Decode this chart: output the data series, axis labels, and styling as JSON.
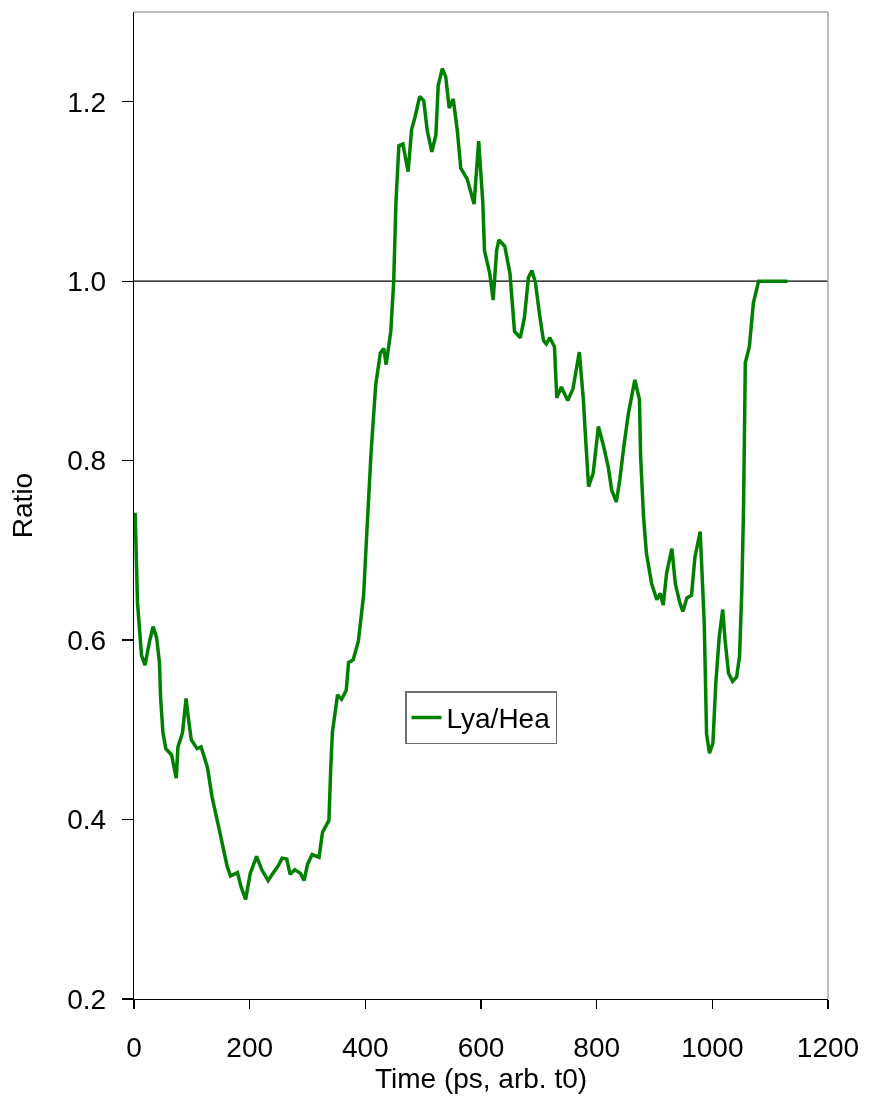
{
  "chart_data": {
    "type": "line",
    "xlabel": "Time (ps, arb. t0)",
    "ylabel": "Ratio",
    "x": [
      2,
      6,
      13,
      19,
      27,
      33,
      39,
      44,
      46,
      50,
      55,
      65,
      73,
      76,
      84,
      90,
      94,
      99,
      109,
      116,
      127,
      135,
      149,
      161,
      167,
      179,
      185,
      193,
      201,
      212,
      221,
      232,
      240,
      249,
      256,
      264,
      270,
      278,
      288,
      294,
      300,
      308,
      320,
      326,
      337,
      340,
      343,
      352,
      359,
      367,
      371,
      379,
      388,
      397,
      403,
      410,
      418,
      426,
      432,
      436,
      444,
      449,
      453,
      458,
      465,
      474,
      480,
      486,
      494,
      501,
      507,
      515,
      522,
      526,
      533,
      539,
      545,
      552,
      559,
      565,
      576,
      588,
      596,
      603,
      606,
      615,
      621,
      627,
      631,
      641,
      650,
      658,
      668,
      675,
      682,
      688,
      694,
      701,
      708,
      713,
      719,
      727,
      731,
      739,
      750,
      759,
      770,
      777,
      780,
      786,
      794,
      803,
      812,
      820,
      826,
      834,
      840,
      847,
      855,
      866,
      874,
      876,
      881,
      886,
      895,
      904,
      910,
      915,
      921,
      930,
      936,
      944,
      949,
      956,
      964,
      970,
      979,
      983,
      986,
      990,
      995,
      1001,
      1006,
      1012,
      1018,
      1022,
      1028,
      1035,
      1042,
      1047,
      1051,
      1054,
      1057,
      1064,
      1071,
      1080,
      1130
    ],
    "series": [
      {
        "name": "Lya/Hea",
        "color": "#008000",
        "values": [
          0.742,
          0.642,
          0.583,
          0.572,
          0.599,
          0.615,
          0.603,
          0.575,
          0.536,
          0.497,
          0.479,
          0.472,
          0.446,
          0.481,
          0.497,
          0.535,
          0.513,
          0.489,
          0.479,
          0.481,
          0.458,
          0.425,
          0.384,
          0.348,
          0.337,
          0.341,
          0.325,
          0.311,
          0.34,
          0.359,
          0.344,
          0.332,
          0.34,
          0.348,
          0.357,
          0.356,
          0.339,
          0.344,
          0.34,
          0.332,
          0.35,
          0.361,
          0.358,
          0.386,
          0.399,
          0.454,
          0.497,
          0.539,
          0.534,
          0.544,
          0.575,
          0.578,
          0.599,
          0.65,
          0.725,
          0.81,
          0.885,
          0.92,
          0.925,
          0.907,
          0.944,
          0.999,
          1.089,
          1.151,
          1.153,
          1.122,
          1.169,
          1.183,
          1.206,
          1.201,
          1.168,
          1.144,
          1.163,
          1.218,
          1.237,
          1.228,
          1.193,
          1.203,
          1.168,
          1.126,
          1.114,
          1.086,
          1.156,
          1.089,
          1.034,
          1.009,
          0.979,
          1.034,
          1.046,
          1.039,
          1.009,
          0.944,
          0.937,
          0.959,
          1.004,
          1.012,
          0.999,
          0.964,
          0.934,
          0.93,
          0.937,
          0.927,
          0.87,
          0.882,
          0.867,
          0.88,
          0.921,
          0.868,
          0.834,
          0.771,
          0.786,
          0.838,
          0.816,
          0.793,
          0.767,
          0.754,
          0.779,
          0.816,
          0.853,
          0.89,
          0.868,
          0.805,
          0.738,
          0.697,
          0.663,
          0.645,
          0.652,
          0.639,
          0.675,
          0.702,
          0.663,
          0.641,
          0.632,
          0.647,
          0.65,
          0.693,
          0.721,
          0.663,
          0.619,
          0.496,
          0.474,
          0.485,
          0.552,
          0.604,
          0.634,
          0.6,
          0.563,
          0.554,
          0.559,
          0.582,
          0.656,
          0.749,
          0.909,
          0.927,
          0.976,
          1.0,
          1.0
        ]
      }
    ],
    "xlim": [
      0,
      1200
    ],
    "xticks": [
      0,
      200,
      400,
      600,
      800,
      1000,
      1200
    ],
    "ylim": [
      0.2,
      1.3
    ],
    "yticks": [
      0.2,
      0.4,
      0.6,
      0.8,
      {
        "value": 1,
        "label": "1.0"
      },
      1.2
    ],
    "ref_lines": [
      {
        "axis": "y",
        "value": 1,
        "color": "#000000"
      }
    ],
    "legend": "bottom center",
    "line_style": "solid"
  }
}
